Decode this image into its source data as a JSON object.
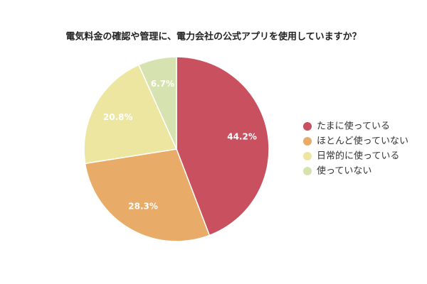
{
  "chart_data": {
    "type": "pie",
    "title": "電気料金の確認や管理に、電力会社の公式アプリを使用していますか？",
    "categories": [
      "たまに使っている",
      "ほとんど使っていない",
      "日常的に使っている",
      "使っていない"
    ],
    "values": [
      44.2,
      28.3,
      20.8,
      6.7
    ],
    "value_labels": [
      "44.2%",
      "28.3%",
      "20.8%",
      "6.7%"
    ],
    "colors": [
      "#c9505e",
      "#e8ac68",
      "#ede6a0",
      "#d6e3b0"
    ],
    "legend": "right"
  }
}
